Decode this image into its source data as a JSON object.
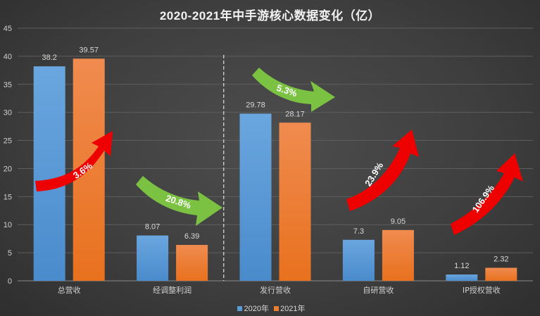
{
  "chart_data": {
    "type": "bar",
    "title": "2020-2021年中手游核心数据变化（亿）",
    "xlabel": "",
    "ylabel": "",
    "ylim": [
      0,
      45
    ],
    "yticks": [
      0,
      5,
      10,
      15,
      20,
      25,
      30,
      35,
      40,
      45
    ],
    "grid": true,
    "legend_position": "bottom",
    "categories": [
      "总营收",
      "经调整利润",
      "发行营收",
      "自研营收",
      "IP授权营收"
    ],
    "series": [
      {
        "name": "2020年",
        "color": "#5b9bd5",
        "values": [
          38.2,
          8.07,
          29.78,
          7.3,
          1.12
        ],
        "labels": [
          "38.2",
          "8.07",
          "29.78",
          "7.3",
          "1.12"
        ]
      },
      {
        "name": "2021年",
        "color": "#ed7d31",
        "values": [
          39.57,
          6.39,
          28.17,
          9.05,
          2.32
        ],
        "labels": [
          "39.57",
          "6.39",
          "28.17",
          "9.05",
          "2.32"
        ]
      }
    ],
    "annotations": [
      {
        "category": "总营收",
        "text": "3.6%",
        "direction": "up",
        "color": "#ee0000"
      },
      {
        "category": "经调整利润",
        "text": "20.8%",
        "direction": "down",
        "color": "#7cc242"
      },
      {
        "category": "发行营收",
        "text": "5.3%",
        "direction": "down",
        "color": "#7cc242"
      },
      {
        "category": "自研营收",
        "text": "23.9%",
        "direction": "up",
        "color": "#ee0000"
      },
      {
        "category": "IP授权营收",
        "text": "106.9%",
        "direction": "up",
        "color": "#ee0000"
      }
    ],
    "separator_after_category": 1
  }
}
